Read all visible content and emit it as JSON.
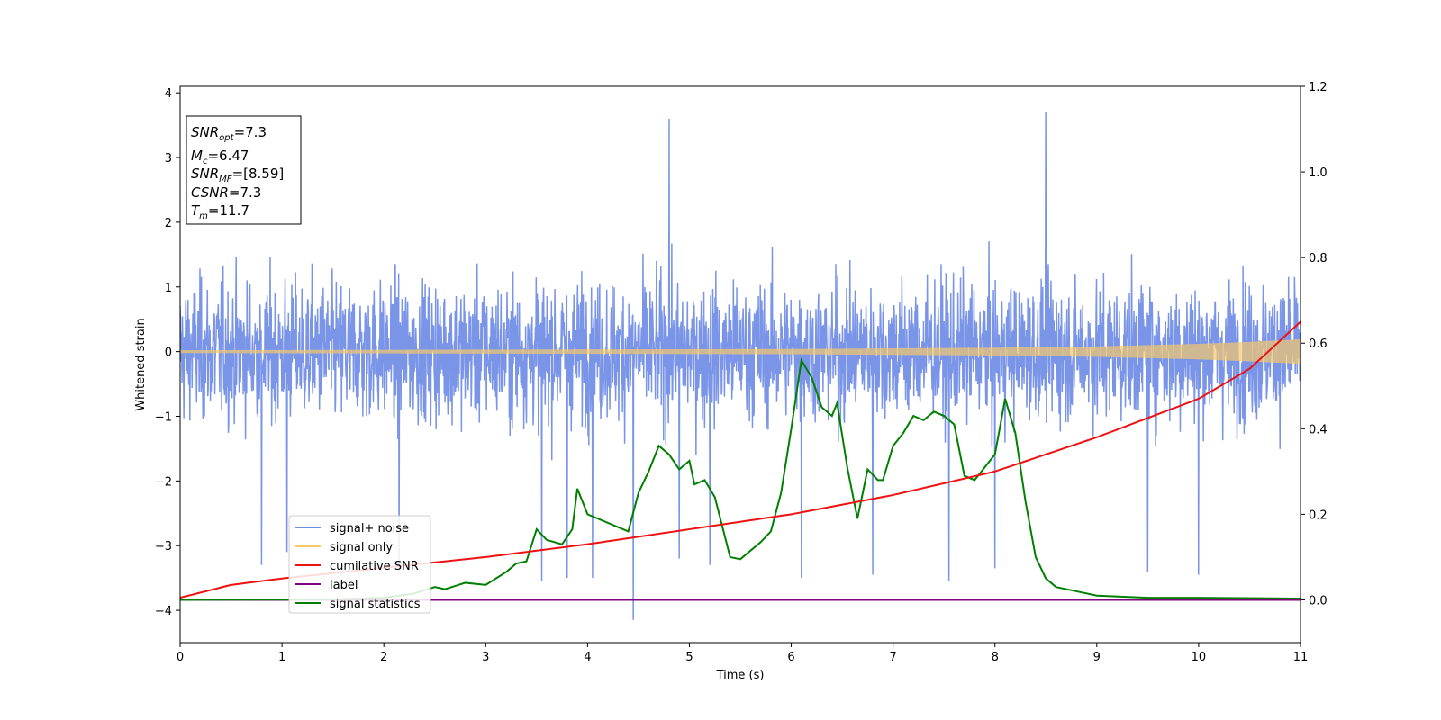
{
  "chart_data": {
    "type": "line",
    "xlabel": "Time (s)",
    "ylabel": "Whitened strain",
    "xlim": [
      0,
      11
    ],
    "ylim": [
      -4.5,
      4.1
    ],
    "y2lim": [
      -0.1,
      1.2
    ],
    "x_ticks": [
      "0",
      "1",
      "2",
      "3",
      "4",
      "5",
      "6",
      "7",
      "8",
      "9",
      "10",
      "11"
    ],
    "x_tick_values": [
      0,
      1,
      2,
      3,
      4,
      5,
      6,
      7,
      8,
      9,
      10,
      11
    ],
    "y_ticks": [
      "4",
      "3",
      "2",
      "1",
      "0",
      "−1",
      "−2",
      "−3",
      "−4"
    ],
    "y_tick_values": [
      4,
      3,
      2,
      1,
      0,
      -1,
      -2,
      -3,
      -4
    ],
    "y2_ticks": [
      "1.2",
      "1.0",
      "0.8",
      "0.6",
      "0.4",
      "0.2",
      "0.0"
    ],
    "y2_tick_values": [
      1.2,
      1.0,
      0.8,
      0.6,
      0.4,
      0.2,
      0.0
    ],
    "colors": {
      "signal_noise": "#6b8ae6",
      "signal_only": "#f5c96b",
      "cumulative_snr": "#ee1111",
      "label": "#800080",
      "signal_statistics": "#008000"
    },
    "annotation": {
      "snr_opt": {
        "symbol": "SNR",
        "sub": "opt",
        "value": "=7.3"
      },
      "mc": {
        "symbol": "M",
        "sub": "c",
        "value": "=6.47"
      },
      "snr_mf": {
        "symbol": "SNR",
        "sub": "MF",
        "value": "=[8.59]"
      },
      "csnr": {
        "symbol": "CSNR",
        "value": "=7.3"
      },
      "tm": {
        "symbol": "T",
        "sub": "m",
        "value": "=11.7"
      }
    },
    "legend_position": "lower-left",
    "series": [
      {
        "name": "signal+ noise",
        "axis": "left",
        "noise_envelope": {
          "typical_high": 2.1,
          "typical_low": -2.1,
          "max": 3.7,
          "min": -4.15
        },
        "peaks": [
          [
            0.8,
            -3.3
          ],
          [
            1.05,
            -3.1
          ],
          [
            2.15,
            -3.4
          ],
          [
            3.55,
            -3.55
          ],
          [
            3.8,
            -3.5
          ],
          [
            4.05,
            -3.5
          ],
          [
            4.45,
            -4.15
          ],
          [
            4.8,
            3.6
          ],
          [
            4.9,
            -3.2
          ],
          [
            5.2,
            -3.3
          ],
          [
            6.1,
            -3.5
          ],
          [
            6.8,
            -3.45
          ],
          [
            7.55,
            -3.55
          ],
          [
            8.0,
            -3.35
          ],
          [
            8.5,
            3.7
          ],
          [
            9.5,
            -3.4
          ],
          [
            10.0,
            -3.45
          ]
        ]
      },
      {
        "name": "signal only",
        "axis": "left",
        "amplitude_points": [
          [
            0,
            0.02
          ],
          [
            3,
            0.03
          ],
          [
            6,
            0.04
          ],
          [
            8,
            0.06
          ],
          [
            9,
            0.08
          ],
          [
            10,
            0.12
          ],
          [
            10.5,
            0.15
          ],
          [
            11,
            0.19
          ]
        ]
      },
      {
        "name": "cumilative SNR",
        "axis": "right",
        "points": [
          [
            0,
            0.005
          ],
          [
            0.5,
            0.035
          ],
          [
            1,
            0.05
          ],
          [
            2,
            0.075
          ],
          [
            3,
            0.1
          ],
          [
            4,
            0.13
          ],
          [
            5,
            0.165
          ],
          [
            6,
            0.2
          ],
          [
            7,
            0.245
          ],
          [
            8,
            0.3
          ],
          [
            9,
            0.38
          ],
          [
            10,
            0.47
          ],
          [
            10.5,
            0.54
          ],
          [
            11,
            0.65
          ]
        ]
      },
      {
        "name": "label",
        "axis": "right",
        "points": [
          [
            0,
            0.0
          ],
          [
            11,
            0.0
          ]
        ]
      },
      {
        "name": "signal statistics",
        "axis": "right",
        "points": [
          [
            0,
            0.0
          ],
          [
            1.5,
            0.001
          ],
          [
            2.0,
            0.005
          ],
          [
            2.3,
            0.015
          ],
          [
            2.5,
            0.03
          ],
          [
            2.6,
            0.025
          ],
          [
            2.8,
            0.04
          ],
          [
            3.0,
            0.035
          ],
          [
            3.2,
            0.065
          ],
          [
            3.3,
            0.085
          ],
          [
            3.4,
            0.09
          ],
          [
            3.5,
            0.165
          ],
          [
            3.6,
            0.14
          ],
          [
            3.75,
            0.13
          ],
          [
            3.85,
            0.165
          ],
          [
            3.9,
            0.26
          ],
          [
            4.0,
            0.2
          ],
          [
            4.1,
            0.19
          ],
          [
            4.3,
            0.17
          ],
          [
            4.4,
            0.16
          ],
          [
            4.5,
            0.25
          ],
          [
            4.6,
            0.3
          ],
          [
            4.7,
            0.36
          ],
          [
            4.8,
            0.34
          ],
          [
            4.9,
            0.305
          ],
          [
            5.0,
            0.325
          ],
          [
            5.05,
            0.27
          ],
          [
            5.15,
            0.28
          ],
          [
            5.25,
            0.24
          ],
          [
            5.4,
            0.1
          ],
          [
            5.5,
            0.095
          ],
          [
            5.7,
            0.135
          ],
          [
            5.8,
            0.16
          ],
          [
            5.9,
            0.25
          ],
          [
            6.0,
            0.4
          ],
          [
            6.1,
            0.56
          ],
          [
            6.2,
            0.52
          ],
          [
            6.3,
            0.45
          ],
          [
            6.4,
            0.43
          ],
          [
            6.45,
            0.46
          ],
          [
            6.55,
            0.31
          ],
          [
            6.65,
            0.19
          ],
          [
            6.75,
            0.305
          ],
          [
            6.85,
            0.28
          ],
          [
            6.9,
            0.28
          ],
          [
            7.0,
            0.36
          ],
          [
            7.1,
            0.39
          ],
          [
            7.2,
            0.43
          ],
          [
            7.3,
            0.42
          ],
          [
            7.4,
            0.44
          ],
          [
            7.5,
            0.43
          ],
          [
            7.6,
            0.41
          ],
          [
            7.7,
            0.29
          ],
          [
            7.8,
            0.28
          ],
          [
            7.9,
            0.31
          ],
          [
            8.0,
            0.34
          ],
          [
            8.1,
            0.47
          ],
          [
            8.2,
            0.39
          ],
          [
            8.3,
            0.23
          ],
          [
            8.4,
            0.1
          ],
          [
            8.5,
            0.05
          ],
          [
            8.6,
            0.03
          ],
          [
            8.8,
            0.02
          ],
          [
            9.0,
            0.01
          ],
          [
            9.5,
            0.005
          ],
          [
            10.0,
            0.005
          ],
          [
            11.0,
            0.003
          ]
        ]
      }
    ]
  }
}
